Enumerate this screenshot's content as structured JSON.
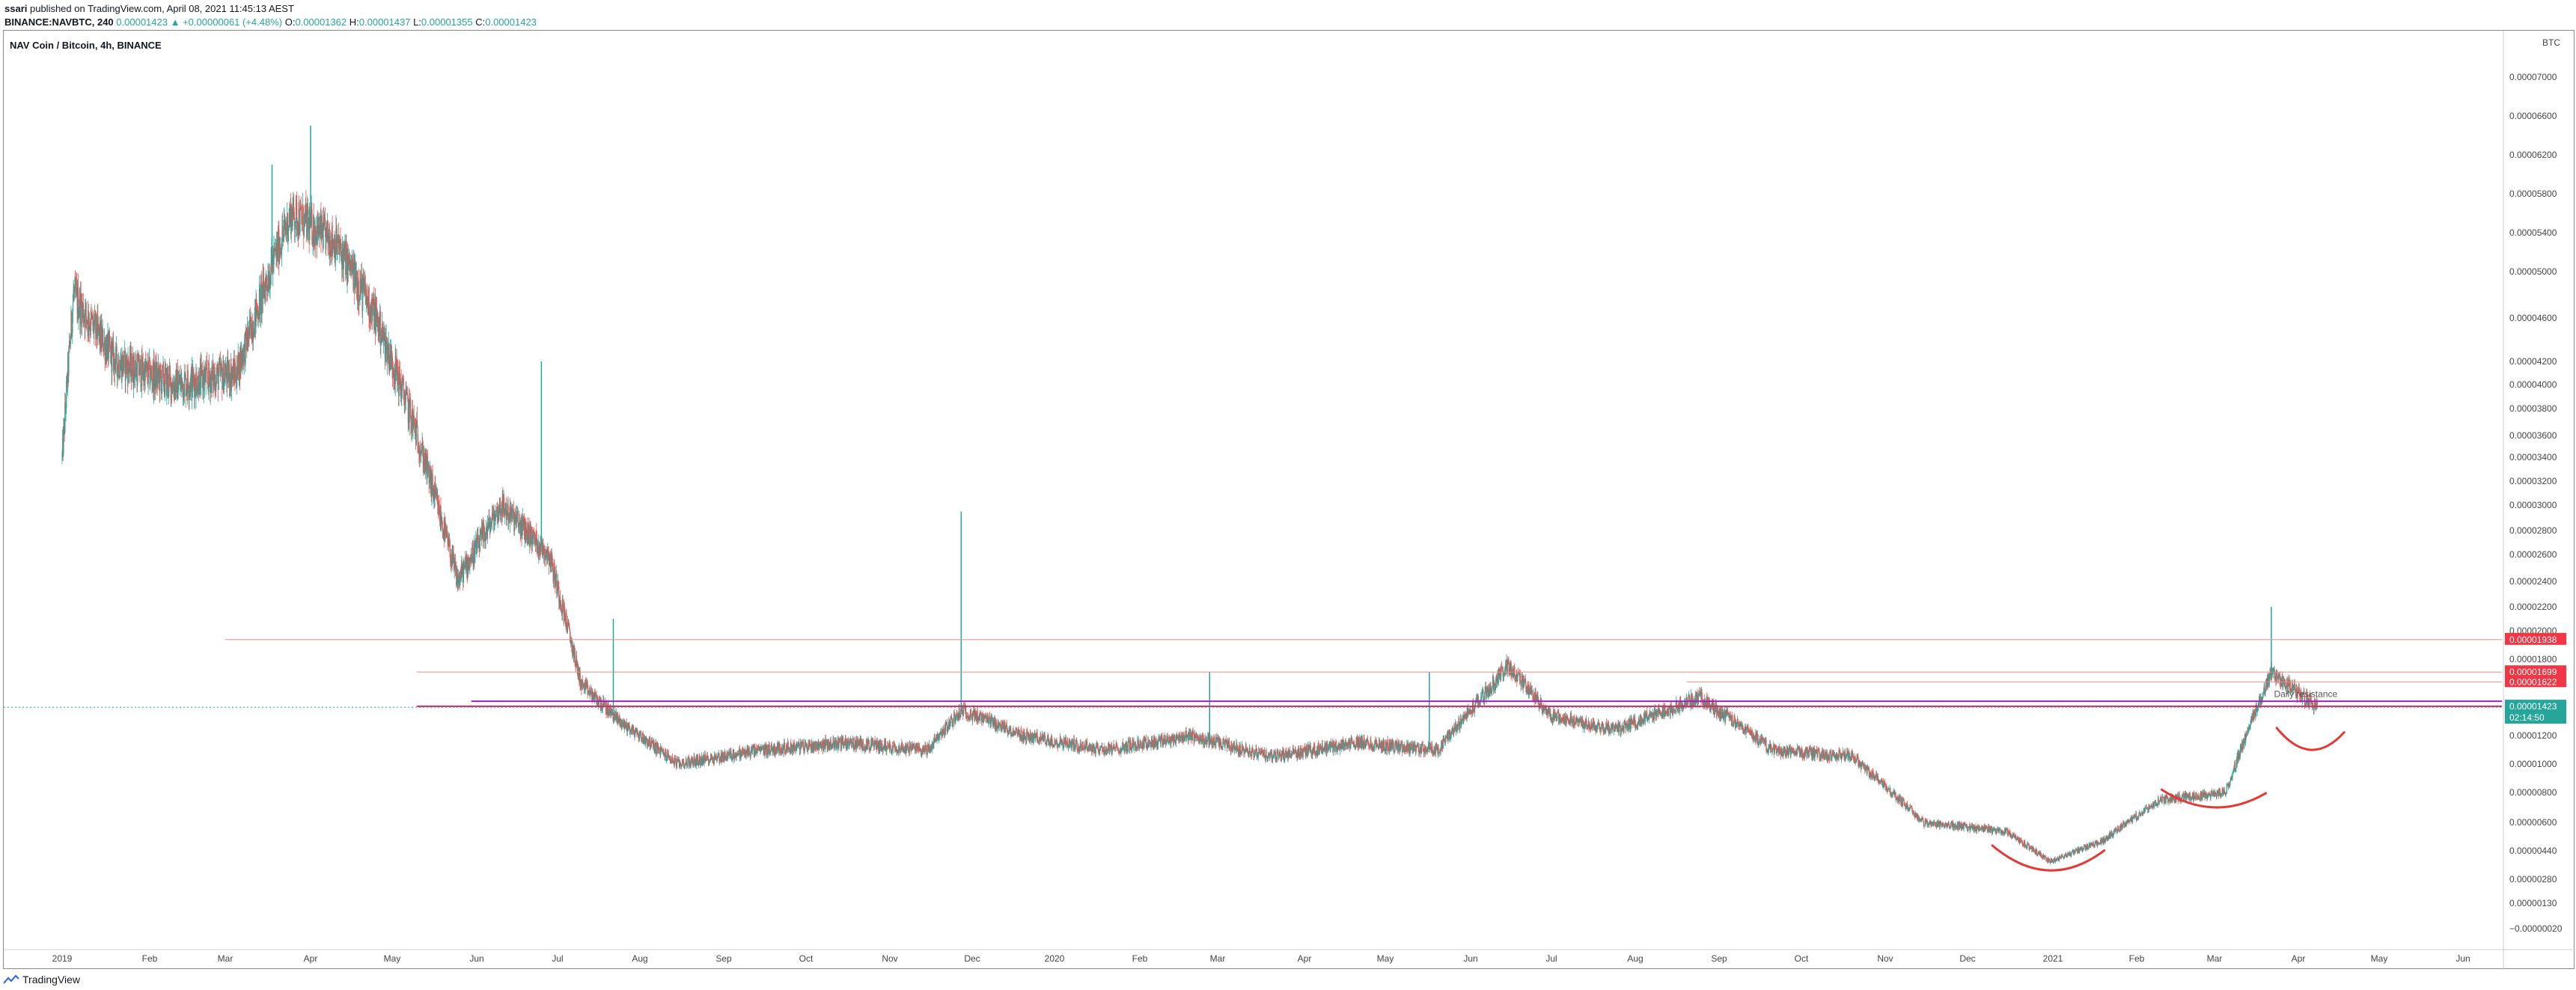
{
  "header": {
    "publisher": "ssari",
    "published_text": " published on TradingView.com, April 08, 2021 11:45:13 AEST",
    "symbol": "BINANCE:NAVBTC, 240",
    "open_value": "0.00001423",
    "change_text": "▲ +0.00000061 (+4.48%)",
    "open_label": "O:",
    "open_price": "0.00001362",
    "high_label": "H:",
    "high_price": "0.00001437",
    "low_label": "L:",
    "low_price": "0.00001355",
    "close_label": "C:",
    "close_price": "0.00001423"
  },
  "footer": {
    "brand": "TradingView"
  },
  "colors": {
    "up": "#26a69a",
    "down": "#ef5350",
    "resistance": "#f28b82",
    "purple": "#9c27b0",
    "magenta": "#e91e63",
    "arc": "#e53935",
    "current_tag": "#26a69a",
    "red_tag": "#f23645"
  },
  "chart_data": {
    "type": "candlestick",
    "title": "NAV Coin / Bitcoin, 4h, BINANCE",
    "currency_label": "BTC",
    "y_scale": "log",
    "ylim": [
      2e-07,
      7.6e-06
    ],
    "y_ticks": [
      {
        "v": 7e-05,
        "label": "0.00007000"
      },
      {
        "v": 6.6e-05,
        "label": "0.00006600"
      },
      {
        "v": 6.2e-05,
        "label": "0.00006200"
      },
      {
        "v": 5.8e-05,
        "label": "0.00005800"
      },
      {
        "v": 5.4e-05,
        "label": "0.00005400"
      },
      {
        "v": 5e-05,
        "label": "0.00005000"
      },
      {
        "v": 4.6e-05,
        "label": "0.00004600"
      },
      {
        "v": 4.2e-05,
        "label": "0.00004200"
      },
      {
        "v": 4e-05,
        "label": "0.00004000"
      },
      {
        "v": 3.8e-05,
        "label": "0.00003800"
      },
      {
        "v": 3.6e-05,
        "label": "0.00003600"
      },
      {
        "v": 3.4e-05,
        "label": "0.00003400"
      },
      {
        "v": 3.2e-05,
        "label": "0.00003200"
      },
      {
        "v": 3e-05,
        "label": "0.00003000"
      },
      {
        "v": 2.8e-05,
        "label": "0.00002800"
      },
      {
        "v": 2.6e-05,
        "label": "0.00002600"
      },
      {
        "v": 2.4e-05,
        "label": "0.00002400"
      },
      {
        "v": 2.2e-05,
        "label": "0.00002200"
      },
      {
        "v": 2e-05,
        "label": "0.00002000"
      },
      {
        "v": 1.8e-05,
        "label": "0.00001800"
      },
      {
        "v": 1.2e-05,
        "label": "0.00001200"
      },
      {
        "v": 1e-05,
        "label": "0.00001000"
      },
      {
        "v": 8e-06,
        "label": "0.00000800"
      },
      {
        "v": 6e-06,
        "label": "0.00000600"
      },
      {
        "v": 4.4e-06,
        "label": "0.00000440"
      },
      {
        "v": 2.8e-06,
        "label": "0.00000280"
      },
      {
        "v": 1.3e-06,
        "label": "0.00000130"
      },
      {
        "v": -2e-07,
        "label": "−0.00000020"
      }
    ],
    "x_labels": [
      "2019",
      "Feb",
      "Mar",
      "Apr",
      "May",
      "Jun",
      "Jul",
      "Aug",
      "Sep",
      "Oct",
      "Nov",
      "Dec",
      "2020",
      "Feb",
      "Mar",
      "Apr",
      "May",
      "Jun",
      "Jul",
      "Aug",
      "Sep",
      "Oct",
      "Nov",
      "Dec",
      "2021",
      "Feb",
      "Mar",
      "Apr",
      "May",
      "Jun"
    ],
    "price_path": [
      [
        "2019-01-01",
        3.4e-05
      ],
      [
        "2019-01-05",
        4.8e-05
      ],
      [
        "2019-01-20",
        4.2e-05
      ],
      [
        "2019-02-10",
        4e-05
      ],
      [
        "2019-03-05",
        4.1e-05
      ],
      [
        "2019-03-25",
        5.6e-05
      ],
      [
        "2019-04-10",
        5.3e-05
      ],
      [
        "2019-04-25",
        4.6e-05
      ],
      [
        "2019-05-10",
        3.6e-05
      ],
      [
        "2019-05-25",
        2.4e-05
      ],
      [
        "2019-06-10",
        3e-05
      ],
      [
        "2019-06-28",
        2.6e-05
      ],
      [
        "2019-07-10",
        1.6e-05
      ],
      [
        "2019-07-25",
        1.3e-05
      ],
      [
        "2019-08-15",
        1e-05
      ],
      [
        "2019-09-15",
        1.1e-05
      ],
      [
        "2019-10-15",
        1.15e-05
      ],
      [
        "2019-11-15",
        1.1e-05
      ],
      [
        "2019-11-27",
        1.4e-05
      ],
      [
        "2019-12-20",
        1.2e-05
      ],
      [
        "2020-01-20",
        1.1e-05
      ],
      [
        "2020-02-20",
        1.2e-05
      ],
      [
        "2020-03-20",
        1.05e-05
      ],
      [
        "2020-04-20",
        1.15e-05
      ],
      [
        "2020-05-20",
        1.1e-05
      ],
      [
        "2020-06-15",
        1.75e-05
      ],
      [
        "2020-07-01",
        1.35e-05
      ],
      [
        "2020-07-25",
        1.25e-05
      ],
      [
        "2020-08-25",
        1.5e-05
      ],
      [
        "2020-09-20",
        1.1e-05
      ],
      [
        "2020-10-20",
        1.05e-05
      ],
      [
        "2020-11-15",
        6e-06
      ],
      [
        "2020-12-15",
        5.5e-06
      ],
      [
        "2020-12-31",
        3.8e-06
      ],
      [
        "2021-01-20",
        5e-06
      ],
      [
        "2021-02-10",
        7.5e-06
      ],
      [
        "2021-03-05",
        8e-06
      ],
      [
        "2021-03-22",
        1.7e-05
      ],
      [
        "2021-04-08",
        1.42e-05
      ]
    ],
    "spikes": [
      [
        "2019-03-18",
        6.1e-05
      ],
      [
        "2019-04-01",
        6.5e-05
      ],
      [
        "2019-06-25",
        4.2e-05
      ],
      [
        "2019-07-22",
        2.1e-05
      ],
      [
        "2019-11-27",
        2.95e-05
      ],
      [
        "2020-02-27",
        1.7e-05
      ],
      [
        "2020-05-17",
        1.7e-05
      ],
      [
        "2021-03-22",
        2.2e-05
      ]
    ],
    "horizontal_lines": [
      {
        "name": "resistance-top",
        "y": 1.938e-05,
        "x_start": "2019-03-01",
        "color": "resistance"
      },
      {
        "name": "resistance-mid",
        "y": 1.699e-05,
        "x_start": "2019-05-10",
        "color": "resistance"
      },
      {
        "name": "resistance-low",
        "y": 1.622e-05,
        "x_start": "2020-08-20",
        "color": "resistance"
      },
      {
        "name": "daily-resistance",
        "y": 1.47e-05,
        "x_start": "2019-05-30",
        "color": "purple"
      },
      {
        "name": "daily-resistance-2",
        "y": 1.43e-05,
        "x_start": "2019-05-10",
        "color": "magenta"
      }
    ],
    "price_tags": [
      {
        "label": "0.00001938",
        "y": 1.938e-05,
        "color": "red_tag"
      },
      {
        "label": "0.00001699",
        "y": 1.699e-05,
        "color": "red_tag"
      },
      {
        "label": "0.00001622",
        "y": 1.622e-05,
        "color": "red_tag"
      }
    ],
    "current_price": {
      "label": "0.00001423",
      "countdown": "02:14:50",
      "y": 1.423e-05
    },
    "annotations": [
      {
        "text": "Daily resistance",
        "date": "2021-03-23",
        "y": 1.48e-05
      }
    ],
    "arcs": [
      {
        "name": "arc-dec-bottom",
        "from": "2020-12-10",
        "to": "2021-01-20",
        "y_lo": 3.3e-06,
        "y_hi": 4.7e-06
      },
      {
        "name": "arc-feb-base",
        "from": "2021-02-10",
        "to": "2021-03-20",
        "y_lo": 7e-06,
        "y_hi": 8.2e-06
      },
      {
        "name": "arc-apr-base",
        "from": "2021-03-24",
        "to": "2021-04-18",
        "y_lo": 1.1e-05,
        "y_hi": 1.26e-05
      }
    ]
  }
}
